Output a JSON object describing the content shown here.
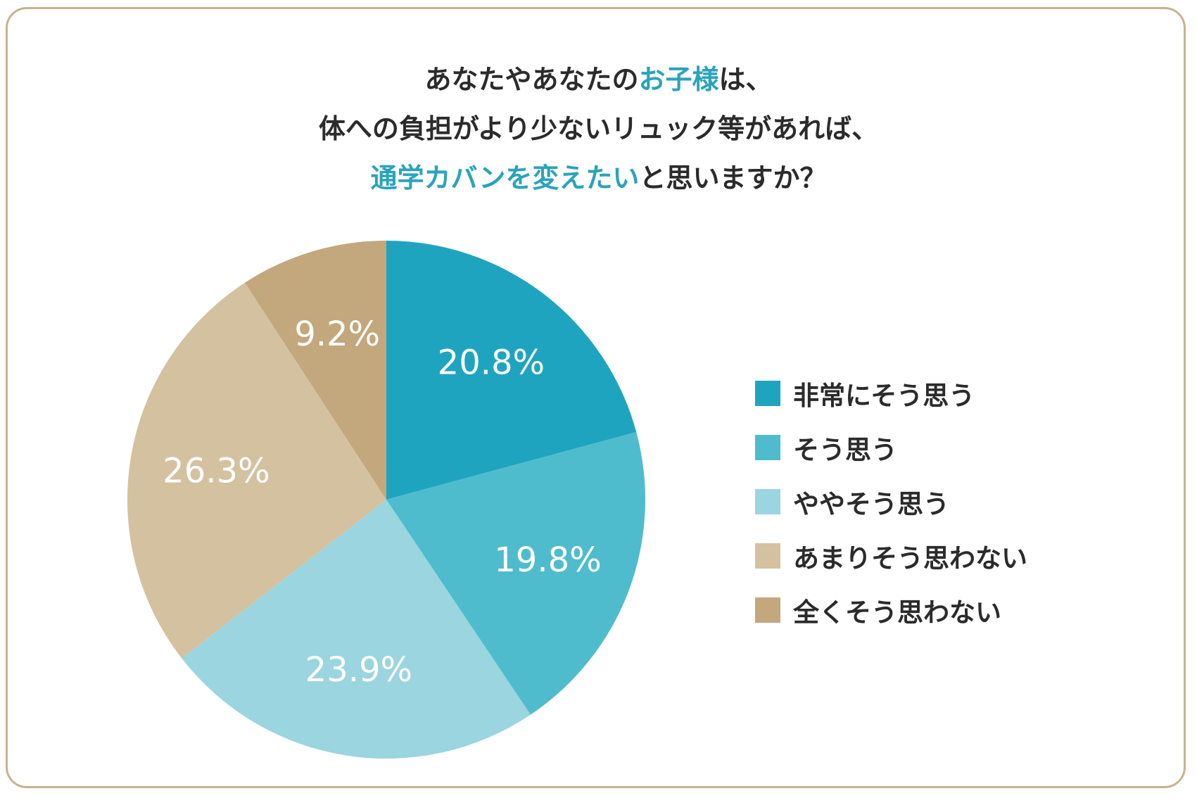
{
  "title": {
    "line1": {
      "pre": "あなたやあなたの",
      "hl": "お子様",
      "post": "は、"
    },
    "line2": "体への負担がより少ないリュック等があれば、",
    "line3": {
      "hl": "通学カバンを変えたい",
      "post": "と思いますか？"
    }
  },
  "colors": {
    "accent": "#2aa3bc",
    "frame": "#c9b28f",
    "text": "#2b2b2b"
  },
  "chart_data": {
    "type": "pie",
    "slices": [
      {
        "label": "非常にそう思う",
        "value": 20.8,
        "value_label": "20.8%",
        "color": "#1fa4bf"
      },
      {
        "label": "そう思う",
        "value": 19.8,
        "value_label": "19.8%",
        "color": "#4fbccd"
      },
      {
        "label": "ややそう思う",
        "value": 23.9,
        "value_label": "23.9%",
        "color": "#9bd5df"
      },
      {
        "label": "あまりそう思わない",
        "value": 26.3,
        "value_label": "26.3%",
        "color": "#d4c1a0"
      },
      {
        "label": "全くそう思わない",
        "value": 9.2,
        "value_label": "9.2%",
        "color": "#c3a77d"
      }
    ],
    "start": "12 o'clock",
    "direction": "clockwise",
    "legend_position": "right"
  }
}
